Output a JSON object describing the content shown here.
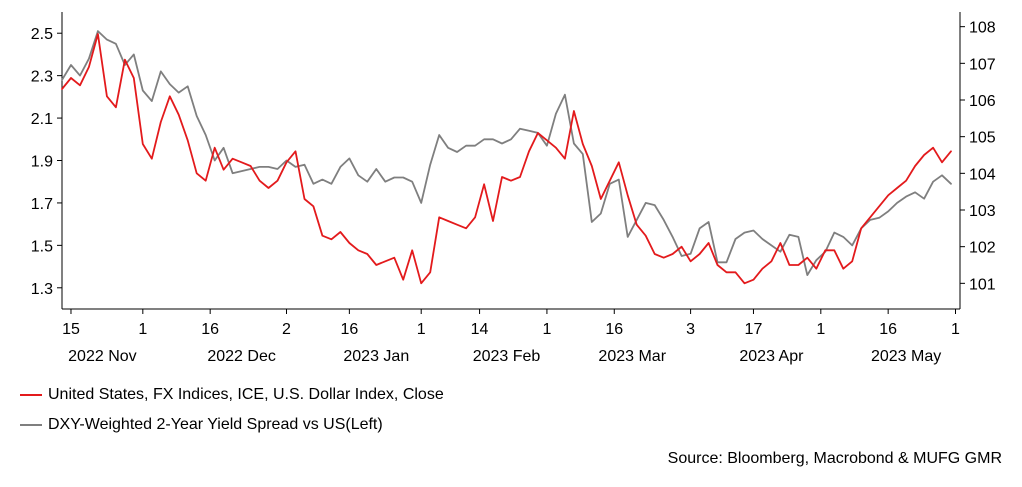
{
  "chart_data": {
    "type": "line",
    "source": "Source: Bloomberg, Macrobond & MUFG GMR",
    "left_axis": {
      "ylim": [
        1.2,
        2.6
      ],
      "ticks": [
        1.3,
        1.5,
        1.7,
        1.9,
        2.1,
        2.3,
        2.5
      ],
      "tick_labels": [
        "1.3",
        "1.5",
        "1.7",
        "1.9",
        "2.1",
        "2.3",
        "2.5"
      ]
    },
    "right_axis": {
      "ylim": [
        100.3,
        108.4
      ],
      "ticks": [
        101,
        102,
        103,
        104,
        105,
        106,
        107,
        108
      ],
      "tick_labels": [
        "101",
        "102",
        "103",
        "104",
        "105",
        "106",
        "107",
        "108"
      ]
    },
    "x_axis": {
      "day_range": [
        -2,
        198
      ],
      "ticks": [
        {
          "day": 0,
          "label": "15"
        },
        {
          "day": 16,
          "label": "1"
        },
        {
          "day": 31,
          "label": "16"
        },
        {
          "day": 48,
          "label": "2"
        },
        {
          "day": 62,
          "label": "16"
        },
        {
          "day": 78,
          "label": "1"
        },
        {
          "day": 91,
          "label": "14"
        },
        {
          "day": 106,
          "label": "1"
        },
        {
          "day": 121,
          "label": "16"
        },
        {
          "day": 138,
          "label": "3"
        },
        {
          "day": 152,
          "label": "17"
        },
        {
          "day": 167,
          "label": "1"
        },
        {
          "day": 182,
          "label": "16"
        },
        {
          "day": 197,
          "label": "1"
        }
      ],
      "month_labels": [
        {
          "day": 7,
          "label": "2022 Nov"
        },
        {
          "day": 38,
          "label": "2022 Dec"
        },
        {
          "day": 68,
          "label": "2023 Jan"
        },
        {
          "day": 97,
          "label": "2023 Feb"
        },
        {
          "day": 125,
          "label": "2023 Mar"
        },
        {
          "day": 156,
          "label": "2023 Apr"
        },
        {
          "day": 186,
          "label": "2023 May"
        }
      ]
    },
    "series": [
      {
        "name": "United States, FX Indices, ICE, U.S. Dollar Index, Close",
        "axis": "right",
        "color": "#e31a1c",
        "days": [
          -2,
          0,
          2,
          4,
          6,
          8,
          10,
          12,
          14,
          16,
          18,
          20,
          22,
          24,
          26,
          28,
          30,
          32,
          34,
          36,
          38,
          40,
          42,
          44,
          46,
          48,
          50,
          52,
          54,
          56,
          58,
          60,
          62,
          64,
          66,
          68,
          70,
          72,
          74,
          76,
          78,
          80,
          82,
          84,
          86,
          88,
          90,
          92,
          94,
          96,
          98,
          100,
          102,
          104,
          106,
          108,
          110,
          112,
          114,
          116,
          118,
          120,
          122,
          124,
          126,
          128,
          130,
          132,
          134,
          136,
          138,
          140,
          142,
          144,
          146,
          148,
          150,
          152,
          154,
          156,
          158,
          160,
          162,
          164,
          166,
          168,
          170,
          172,
          174,
          176,
          178,
          180,
          182,
          184,
          186,
          188,
          190,
          192,
          194,
          196
        ],
        "values": [
          106.3,
          106.6,
          106.4,
          106.9,
          107.8,
          106.1,
          105.8,
          107.1,
          106.6,
          104.8,
          104.4,
          105.4,
          106.1,
          105.6,
          104.9,
          104.0,
          103.8,
          104.7,
          104.1,
          104.4,
          104.3,
          104.2,
          103.8,
          103.6,
          103.8,
          104.3,
          104.6,
          103.3,
          103.1,
          102.3,
          102.2,
          102.4,
          102.1,
          101.9,
          101.8,
          101.5,
          101.6,
          101.7,
          101.1,
          101.9,
          101.0,
          101.3,
          102.8,
          102.7,
          102.6,
          102.5,
          102.8,
          103.7,
          102.7,
          103.9,
          103.8,
          103.9,
          104.6,
          105.1,
          104.9,
          104.7,
          104.4,
          105.7,
          104.8,
          104.2,
          103.3,
          103.8,
          104.3,
          103.4,
          102.6,
          102.3,
          101.8,
          101.7,
          101.8,
          102.0,
          101.6,
          101.8,
          102.1,
          101.5,
          101.3,
          101.3,
          101.0,
          101.1,
          101.4,
          101.6,
          102.1,
          101.5,
          101.5,
          101.7,
          101.4,
          101.9,
          101.9,
          101.4,
          101.6,
          102.5,
          102.8,
          103.1,
          103.4,
          103.6,
          103.8,
          104.2,
          104.5,
          104.7,
          104.3,
          104.6
        ]
      },
      {
        "name": "DXY-Weighted 2-Year Yield Spread vs US(Left)",
        "axis": "left",
        "color": "#7f7f7f",
        "days": [
          -2,
          0,
          2,
          4,
          6,
          8,
          10,
          12,
          14,
          16,
          18,
          20,
          22,
          24,
          26,
          28,
          30,
          32,
          34,
          36,
          38,
          40,
          42,
          44,
          46,
          48,
          50,
          52,
          54,
          56,
          58,
          60,
          62,
          64,
          66,
          68,
          70,
          72,
          74,
          76,
          78,
          80,
          82,
          84,
          86,
          88,
          90,
          92,
          94,
          96,
          98,
          100,
          102,
          104,
          106,
          108,
          110,
          112,
          114,
          116,
          118,
          120,
          122,
          124,
          126,
          128,
          130,
          132,
          134,
          136,
          138,
          140,
          142,
          144,
          146,
          148,
          150,
          152,
          154,
          156,
          158,
          160,
          162,
          164,
          166,
          168,
          170,
          172,
          174,
          176,
          178,
          180,
          182,
          184,
          186,
          188,
          190,
          192,
          194,
          196
        ],
        "values": [
          2.28,
          2.35,
          2.3,
          2.38,
          2.51,
          2.47,
          2.45,
          2.35,
          2.4,
          2.23,
          2.18,
          2.32,
          2.26,
          2.22,
          2.25,
          2.11,
          2.02,
          1.9,
          1.96,
          1.84,
          1.85,
          1.86,
          1.87,
          1.87,
          1.86,
          1.9,
          1.87,
          1.88,
          1.79,
          1.81,
          1.79,
          1.87,
          1.91,
          1.83,
          1.8,
          1.86,
          1.8,
          1.82,
          1.82,
          1.8,
          1.7,
          1.88,
          2.02,
          1.96,
          1.94,
          1.97,
          1.97,
          2.0,
          2.0,
          1.98,
          2.0,
          2.05,
          2.04,
          2.03,
          1.97,
          2.12,
          2.21,
          1.98,
          1.93,
          1.61,
          1.65,
          1.79,
          1.81,
          1.54,
          1.62,
          1.7,
          1.69,
          1.62,
          1.54,
          1.45,
          1.46,
          1.58,
          1.61,
          1.42,
          1.42,
          1.53,
          1.56,
          1.57,
          1.53,
          1.5,
          1.47,
          1.55,
          1.54,
          1.36,
          1.43,
          1.47,
          1.56,
          1.54,
          1.5,
          1.58,
          1.62,
          1.63,
          1.66,
          1.7,
          1.73,
          1.75,
          1.72,
          1.8,
          1.83,
          1.79
        ]
      }
    ]
  }
}
